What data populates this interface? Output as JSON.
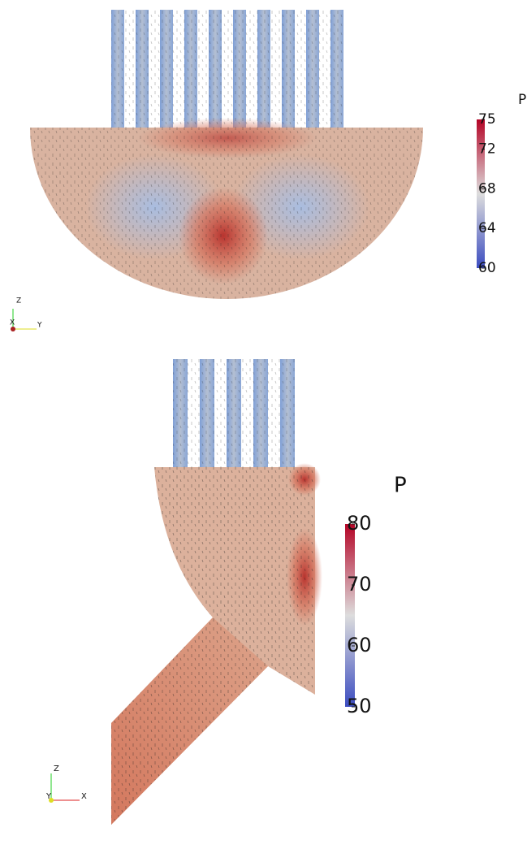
{
  "panels": [
    {
      "colorbar": {
        "title": "P",
        "ticks": [
          75,
          72,
          68,
          64,
          60
        ]
      },
      "axes": {
        "z": "Z",
        "x": "X",
        "y": "Y"
      }
    },
    {
      "colorbar": {
        "title": "P",
        "ticks": [
          80,
          70,
          60,
          50
        ]
      },
      "axes": {
        "z": "Z",
        "y": "Y",
        "x": "X"
      }
    }
  ]
}
